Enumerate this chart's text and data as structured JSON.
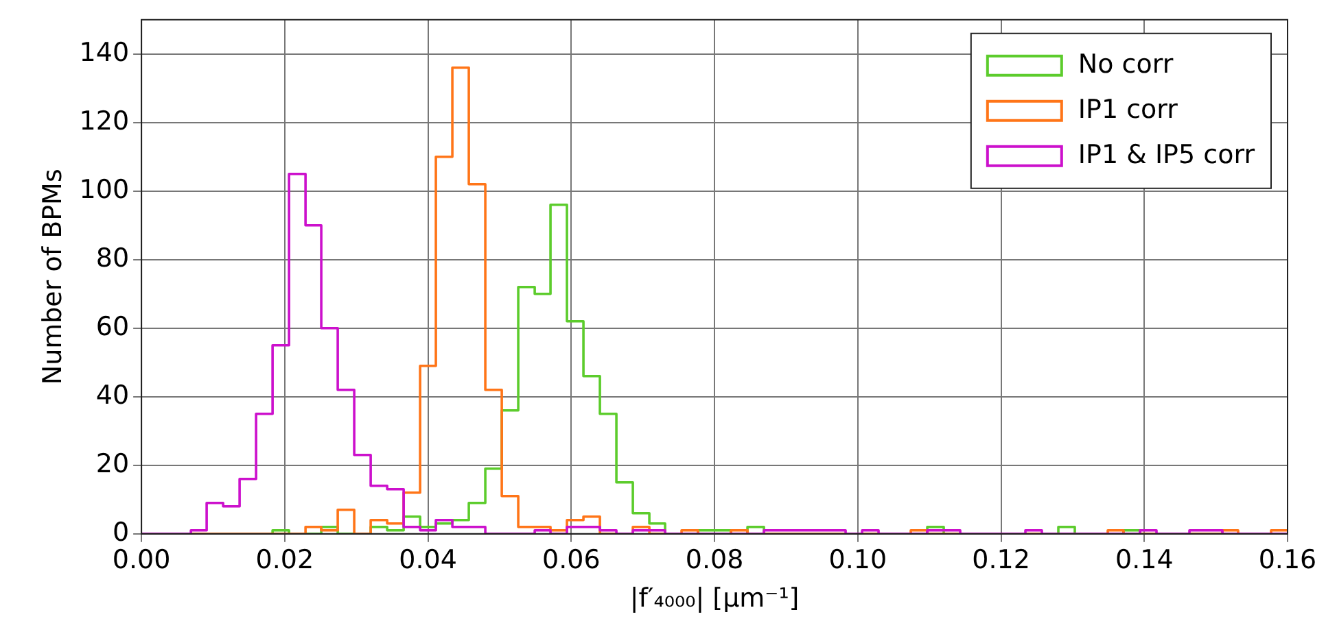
{
  "chart_data": {
    "type": "histogram",
    "xlabel": "|f′₄₀₀₀| [μm⁻¹]",
    "ylabel": "Number of BPMs",
    "bins": [
      0,
      0.0023,
      0.0046,
      0.0069,
      0.0091,
      0.0114,
      0.0137,
      0.016,
      0.0183,
      0.0206,
      0.0229,
      0.0251,
      0.0274,
      0.0297,
      0.032,
      0.0343,
      0.0366,
      0.0389,
      0.0411,
      0.0434,
      0.0457,
      0.048,
      0.0503,
      0.0526,
      0.0549,
      0.0571,
      0.0594,
      0.0617,
      0.064,
      0.0663,
      0.0686,
      0.0709,
      0.0731,
      0.0754,
      0.0777,
      0.08,
      0.0823,
      0.0846,
      0.0869,
      0.0891,
      0.0914,
      0.0937,
      0.096,
      0.0983,
      0.1006,
      0.1029,
      0.1051,
      0.1074,
      0.1097,
      0.112,
      0.1143,
      0.1166,
      0.1189,
      0.1211,
      0.1234,
      0.1257,
      0.128,
      0.1303,
      0.1326,
      0.1349,
      0.1371,
      0.1394,
      0.1417,
      0.144,
      0.1463,
      0.1486,
      0.1509,
      0.1531,
      0.1554,
      0.1577,
      0.16
    ],
    "series": [
      {
        "name": "No corr",
        "color": "#5ccc2c",
        "values": [
          0,
          0,
          0,
          0,
          0,
          0,
          0,
          0,
          1,
          0,
          0,
          2,
          0,
          0,
          2,
          1,
          5,
          2,
          3,
          4,
          9,
          19,
          36,
          72,
          70,
          96,
          62,
          46,
          35,
          15,
          6,
          3,
          0,
          0,
          1,
          1,
          0,
          2,
          0,
          0,
          0,
          0,
          0,
          0,
          0,
          0,
          0,
          0,
          2,
          0,
          0,
          0,
          0,
          0,
          0,
          0,
          2,
          0,
          0,
          0,
          1,
          0,
          0,
          0,
          0,
          0,
          0,
          0,
          0,
          0
        ]
      },
      {
        "name": "IP1 corr",
        "color": "#ff7518",
        "values": [
          0,
          0,
          0,
          0,
          0,
          0,
          0,
          0,
          0,
          0,
          2,
          1,
          7,
          0,
          4,
          3,
          12,
          49,
          110,
          136,
          102,
          42,
          11,
          2,
          2,
          1,
          4,
          5,
          0,
          0,
          2,
          0,
          0,
          1,
          0,
          0,
          1,
          0,
          0,
          0,
          0,
          0,
          0,
          0,
          0,
          0,
          0,
          1,
          0,
          0,
          0,
          0,
          0,
          0,
          0,
          0,
          0,
          0,
          0,
          1,
          0,
          0,
          0,
          0,
          0,
          0,
          1,
          0,
          0,
          1
        ]
      },
      {
        "name": "IP1 & IP5 corr",
        "color": "#cc10cc",
        "values": [
          0,
          0,
          0,
          1,
          9,
          8,
          16,
          35,
          55,
          105,
          90,
          60,
          42,
          23,
          14,
          13,
          2,
          1,
          4,
          2,
          2,
          0,
          0,
          0,
          1,
          0,
          2,
          2,
          1,
          0,
          1,
          1,
          0,
          0,
          0,
          0,
          0,
          0,
          1,
          1,
          1,
          1,
          1,
          0,
          1,
          0,
          0,
          0,
          1,
          1,
          0,
          0,
          0,
          0,
          1,
          0,
          0,
          0,
          0,
          0,
          0,
          1,
          0,
          0,
          1,
          1,
          0,
          0,
          0,
          0
        ]
      }
    ],
    "xlim": [
      0,
      0.16
    ],
    "xticks": [
      {
        "value": 0,
        "label": "0.00"
      },
      0.02,
      0.04,
      0.06,
      0.08,
      {
        "value": 0.1,
        "label": "0.10"
      },
      0.12,
      0.14,
      0.16
    ],
    "ylim": [
      0,
      150
    ],
    "yticks": [
      0,
      20,
      40,
      60,
      80,
      100,
      120,
      140
    ],
    "grid": true,
    "legend": "top right"
  }
}
